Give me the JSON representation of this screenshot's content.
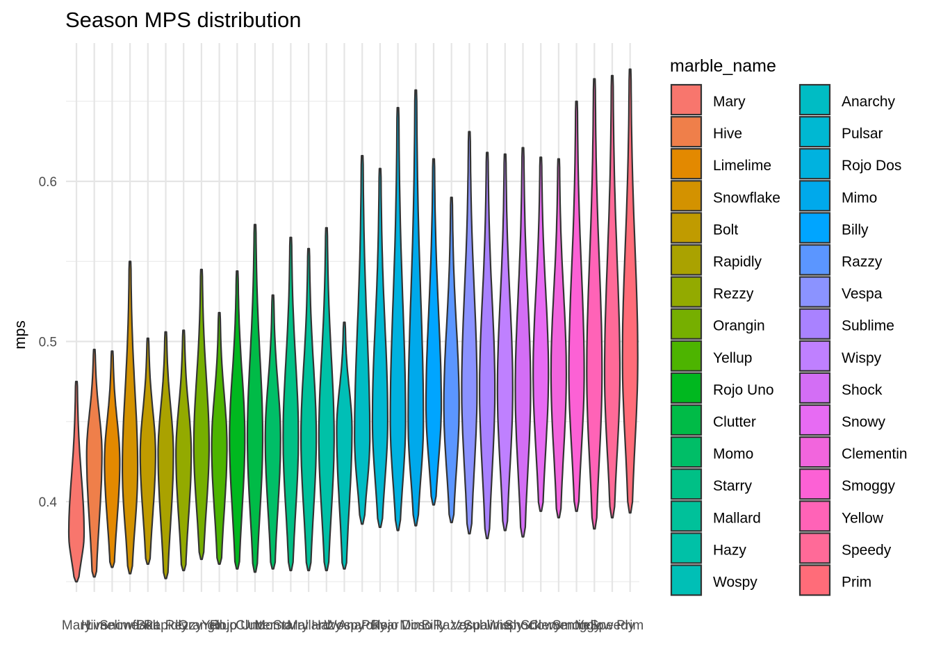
{
  "chart_data": {
    "type": "violin",
    "title": "Season MPS distribution",
    "xlabel": "",
    "ylabel": "mps",
    "ylim": [
      0.35,
      0.675
    ],
    "yticks": [
      "0.4",
      "0.5",
      "0.6"
    ],
    "grid": true,
    "legend": {
      "title": "marble_name",
      "placement": "right",
      "columns": 2
    },
    "categories": [
      "Mary",
      "Hive",
      "Limelime",
      "Snowflake",
      "Bolt",
      "Rapidly",
      "Rezzy",
      "Orangin",
      "Yellup",
      "Rojo Uno",
      "Clutter",
      "Momo",
      "Starry",
      "Mallard",
      "Hazy",
      "Wospy",
      "Anarchy",
      "Pulsar",
      "Rojo Dos",
      "Mimo",
      "Billy",
      "Razzy",
      "Vespa",
      "Sublime",
      "Wispy",
      "Shock",
      "Snowy",
      "Clementin",
      "Smoggy",
      "Yellow",
      "Speedy",
      "Prim"
    ],
    "series": [
      {
        "name": "Mary",
        "color": "#F8766D",
        "min": 0.35,
        "max": 0.475,
        "median": 0.38
      },
      {
        "name": "Hive",
        "color": "#EF7F4A",
        "min": 0.353,
        "max": 0.495,
        "median": 0.43
      },
      {
        "name": "Limelime",
        "color": "#E38900",
        "min": 0.359,
        "max": 0.494,
        "median": 0.425
      },
      {
        "name": "Snowflake",
        "color": "#D39200",
        "min": 0.355,
        "max": 0.55,
        "median": 0.42
      },
      {
        "name": "Bolt",
        "color": "#C09B00",
        "min": 0.361,
        "max": 0.502,
        "median": 0.43
      },
      {
        "name": "Rapidly",
        "color": "#AAA200",
        "min": 0.352,
        "max": 0.506,
        "median": 0.43
      },
      {
        "name": "Rezzy",
        "color": "#93AA00",
        "min": 0.357,
        "max": 0.507,
        "median": 0.43
      },
      {
        "name": "Orangin",
        "color": "#76AF00",
        "min": 0.364,
        "max": 0.545,
        "median": 0.435
      },
      {
        "name": "Yellup",
        "color": "#4DB400",
        "min": 0.361,
        "max": 0.518,
        "median": 0.435
      },
      {
        "name": "Rojo Uno",
        "color": "#00B81F",
        "min": 0.358,
        "max": 0.544,
        "median": 0.44
      },
      {
        "name": "Clutter",
        "color": "#00BB47",
        "min": 0.356,
        "max": 0.573,
        "median": 0.44
      },
      {
        "name": "Momo",
        "color": "#00BE67",
        "min": 0.358,
        "max": 0.529,
        "median": 0.44
      },
      {
        "name": "Starry",
        "color": "#00C086",
        "min": 0.357,
        "max": 0.565,
        "median": 0.44
      },
      {
        "name": "Mallard",
        "color": "#00C19A",
        "min": 0.357,
        "max": 0.558,
        "median": 0.44
      },
      {
        "name": "Hazy",
        "color": "#00C1A7",
        "min": 0.357,
        "max": 0.571,
        "median": 0.44
      },
      {
        "name": "Wospy",
        "color": "#00BFB6",
        "min": 0.358,
        "max": 0.512,
        "median": 0.445
      },
      {
        "name": "Anarchy",
        "color": "#00BCC4",
        "min": 0.386,
        "max": 0.616,
        "median": 0.44
      },
      {
        "name": "Pulsar",
        "color": "#00B8D2",
        "min": 0.384,
        "max": 0.608,
        "median": 0.45
      },
      {
        "name": "Rojo Dos",
        "color": "#00B2DF",
        "min": 0.382,
        "max": 0.646,
        "median": 0.45
      },
      {
        "name": "Mimo",
        "color": "#00A9EB",
        "min": 0.385,
        "max": 0.657,
        "median": 0.45
      },
      {
        "name": "Billy",
        "color": "#00A5FF",
        "min": 0.398,
        "max": 0.614,
        "median": 0.46
      },
      {
        "name": "Razzy",
        "color": "#5B96FF",
        "min": 0.387,
        "max": 0.59,
        "median": 0.46
      },
      {
        "name": "Vespa",
        "color": "#8B93FF",
        "min": 0.38,
        "max": 0.631,
        "median": 0.47
      },
      {
        "name": "Sublime",
        "color": "#A982FF",
        "min": 0.377,
        "max": 0.618,
        "median": 0.47
      },
      {
        "name": "Wispy",
        "color": "#BF80FF",
        "min": 0.382,
        "max": 0.617,
        "median": 0.47
      },
      {
        "name": "Shock",
        "color": "#D36EF5",
        "min": 0.378,
        "max": 0.621,
        "median": 0.47
      },
      {
        "name": "Snowy",
        "color": "#E76BF3",
        "min": 0.394,
        "max": 0.615,
        "median": 0.48
      },
      {
        "name": "Clementin",
        "color": "#F265DD",
        "min": 0.39,
        "max": 0.614,
        "median": 0.48
      },
      {
        "name": "Smoggy",
        "color": "#FC61D5",
        "min": 0.394,
        "max": 0.65,
        "median": 0.48
      },
      {
        "name": "Yellow",
        "color": "#FF63B7",
        "min": 0.383,
        "max": 0.664,
        "median": 0.48
      },
      {
        "name": "Speedy",
        "color": "#FF6A98",
        "min": 0.39,
        "max": 0.666,
        "median": 0.48
      },
      {
        "name": "Prim",
        "color": "#FF6C79",
        "min": 0.393,
        "max": 0.67,
        "median": 0.49
      }
    ]
  }
}
